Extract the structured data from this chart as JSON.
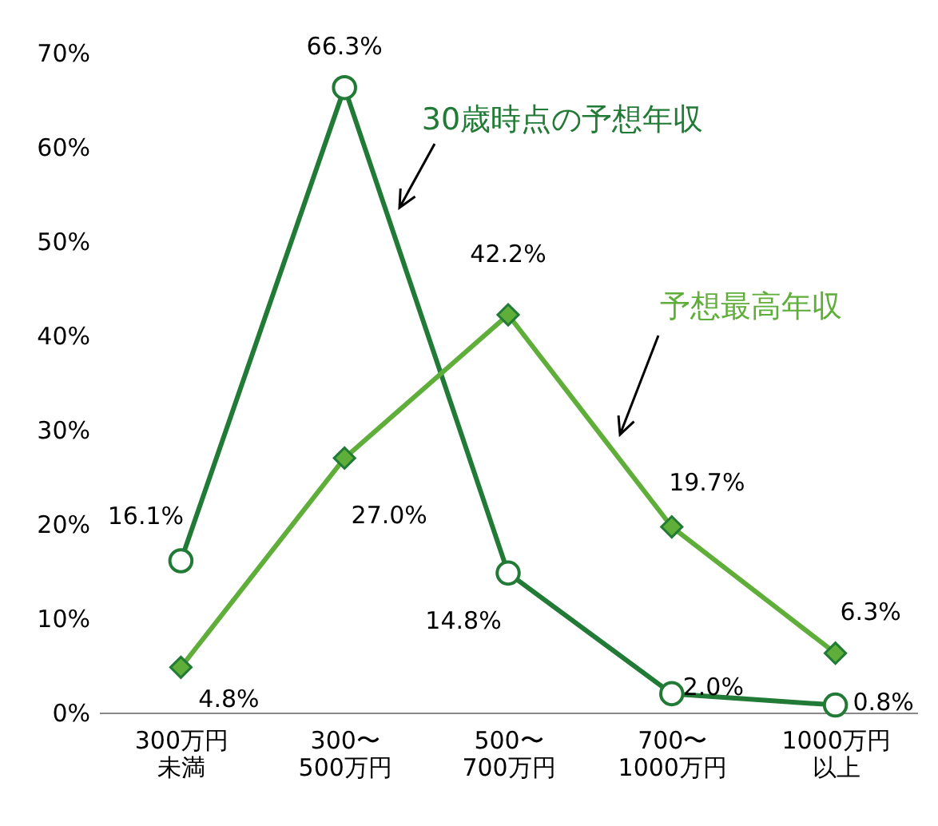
{
  "chart_data": {
    "type": "line",
    "categories": [
      "300万円未満",
      "300〜\n500万円",
      "500〜\n700万円",
      "700〜\n1000万円",
      "1000万円以上"
    ],
    "series": [
      {
        "name": "30歳時点の予想年収",
        "color": "#217a35",
        "marker": "circle",
        "values": [
          16.1,
          66.3,
          14.8,
          2.0,
          0.8
        ],
        "value_labels": [
          "16.1%",
          "66.3%",
          "14.8%",
          "2.0%",
          "0.8%"
        ]
      },
      {
        "name": "予想最高年収",
        "color": "#5fae3a",
        "marker": "diamond",
        "values": [
          4.8,
          27.0,
          42.2,
          19.7,
          6.3
        ],
        "value_labels": [
          "4.8%",
          "27.0%",
          "42.2%",
          "19.7%",
          "6.3%"
        ]
      }
    ],
    "ylim": [
      0,
      70
    ],
    "yticks": [
      {
        "value": 0,
        "label": "0%"
      },
      {
        "value": 10,
        "label": "10%"
      },
      {
        "value": 20,
        "label": "20%"
      },
      {
        "value": 30,
        "label": "30%"
      },
      {
        "value": 40,
        "label": "40%"
      },
      {
        "value": 50,
        "label": "50%"
      },
      {
        "value": 60,
        "label": "60%"
      },
      {
        "value": 70,
        "label": "70%"
      }
    ],
    "legend": false
  }
}
